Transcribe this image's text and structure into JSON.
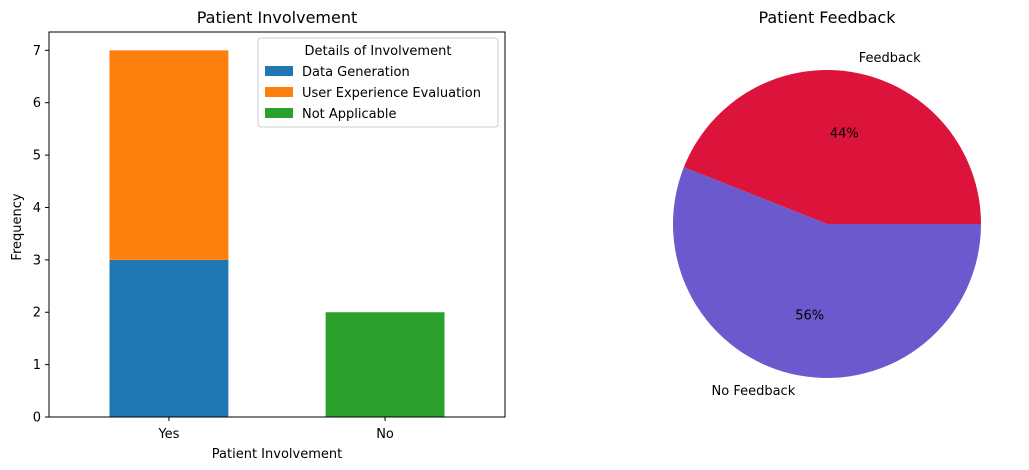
{
  "chart_data": [
    {
      "type": "bar",
      "stacked": true,
      "title": "Patient Involvement",
      "xlabel": "Patient Involvement",
      "ylabel": "Frequency",
      "categories": [
        "Yes",
        "No"
      ],
      "series": [
        {
          "name": "Data Generation",
          "values": [
            3,
            0
          ],
          "color": "#1f77b4"
        },
        {
          "name": "User Experience Evaluation",
          "values": [
            4,
            0
          ],
          "color": "#ff7f0e"
        },
        {
          "name": "Not Applicable",
          "values": [
            0,
            2
          ],
          "color": "#2ca02c"
        }
      ],
      "ylim": [
        0,
        7.35
      ],
      "yticks": [
        0,
        1,
        2,
        3,
        4,
        5,
        6,
        7
      ],
      "legend": {
        "title": "Details of Involvement",
        "placement": "top-right"
      },
      "grid": false
    },
    {
      "type": "pie",
      "title": "Patient Feedback",
      "slices": [
        {
          "label": "Feedback",
          "value": 44,
          "pct_label": "44%",
          "color": "#dc143c"
        },
        {
          "label": "No Feedback",
          "value": 56,
          "pct_label": "56%",
          "color": "#6a5acd"
        }
      ]
    }
  ]
}
